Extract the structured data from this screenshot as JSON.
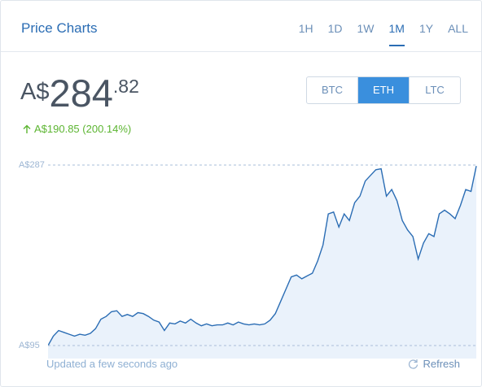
{
  "header": {
    "title": "Price Charts",
    "ranges": [
      "1H",
      "1D",
      "1W",
      "1M",
      "1Y",
      "ALL"
    ],
    "active_range": 3
  },
  "price": {
    "currency": "A$",
    "integer": "284",
    "fraction": ".82"
  },
  "coins": {
    "items": [
      "BTC",
      "ETH",
      "LTC"
    ],
    "active": 1
  },
  "change": {
    "text": "A$190.85 (200.14%)"
  },
  "chart_data": {
    "type": "area",
    "color": "#2b6db4",
    "fill": "#eaf2fb",
    "values": [
      95,
      105,
      111,
      109,
      107,
      105,
      107,
      106,
      108,
      113,
      123,
      126,
      131,
      132,
      126,
      128,
      126,
      130,
      129,
      126,
      122,
      120,
      111,
      119,
      118,
      121,
      119,
      123,
      119,
      116,
      118,
      116,
      117,
      117,
      119,
      117,
      120,
      118,
      117,
      118,
      117,
      118,
      122,
      129,
      142,
      155,
      168,
      170,
      166,
      169,
      172,
      185,
      202,
      235,
      237,
      221,
      235,
      228,
      247,
      254,
      270,
      276,
      282,
      283,
      254,
      261,
      249,
      228,
      218,
      211,
      187,
      204,
      214,
      211,
      235,
      239,
      235,
      230,
      244,
      261,
      259,
      286
    ],
    "ylim": [
      95,
      287
    ],
    "yticks": [
      {
        "value": 287,
        "label": "A$287"
      },
      {
        "value": 95,
        "label": "A$95"
      }
    ]
  },
  "footer": {
    "updated": "Updated a few seconds ago",
    "refresh": "Refresh"
  }
}
